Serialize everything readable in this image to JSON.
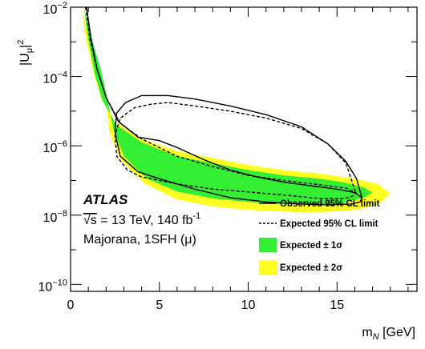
{
  "chart_data": {
    "type": "area",
    "title": "",
    "xlabel": "m_N [GeV]",
    "xlabel_main": "m",
    "xlabel_sub": "N",
    "xlabel_unit": " [GeV]",
    "ylabel_main": "|U",
    "ylabel_sub": "μ",
    "ylabel_bar": "|",
    "ylabel_sup": "2",
    "xlim": [
      0,
      19.5
    ],
    "ylim_log10": [
      -10.2,
      -2
    ],
    "y_scale": "log",
    "grid": false,
    "x_ticks": [
      {
        "value": 0,
        "label": "0"
      },
      {
        "value": 5,
        "label": "5"
      },
      {
        "value": 10,
        "label": "10"
      },
      {
        "value": 15,
        "label": "15"
      }
    ],
    "y_ticks": [
      {
        "exp": -2,
        "base": "10",
        "sup": "−2"
      },
      {
        "exp": -4,
        "base": "10",
        "sup": "−4"
      },
      {
        "exp": -6,
        "base": "10",
        "sup": "−6"
      },
      {
        "exp": -8,
        "base": "10",
        "sup": "−8"
      },
      {
        "exp": -10,
        "base": "10",
        "sup": "−10"
      }
    ],
    "annotations": {
      "experiment": "ATLAS",
      "energy_sqrt": "√s",
      "energy_rest": " = 13 TeV, 140 fb",
      "lumi_sup": "-1",
      "model": "Majorana, 1SFH (μ)"
    },
    "legend": {
      "placement": "bottom-right",
      "entries": {
        "observed": "Observed 95% CL limit",
        "expected": "Expected 95% CL limit",
        "one_sigma": "Expected ± 1σ",
        "two_sigma": "Expected ± 2σ"
      }
    },
    "colors": {
      "observed": "#000000",
      "expected": "#000000",
      "one_sigma": "#33ee33",
      "two_sigma": "#ffff22"
    },
    "series": {
      "two_sigma_band": {
        "name": "Expected ± 2σ",
        "x": [
          0.6,
          0.9,
          1.3,
          1.7,
          2.5,
          4,
          6,
          8,
          10,
          12,
          14,
          16,
          17.3,
          18,
          17.3,
          16,
          14,
          12,
          10,
          8,
          6,
          4.2,
          2.8,
          2.2,
          2,
          1.6,
          1.2,
          0.95,
          0.75,
          0.6
        ],
        "log10_y": [
          -2,
          -3,
          -3.9,
          -4.6,
          -5.3,
          -5.8,
          -6.15,
          -6.35,
          -6.55,
          -6.7,
          -6.8,
          -6.95,
          -7.1,
          -7.38,
          -7.7,
          -7.85,
          -7.92,
          -7.9,
          -7.85,
          -7.75,
          -7.55,
          -7.1,
          -6.4,
          -5.6,
          -4.8,
          -3.9,
          -3.2,
          -2.7,
          -2.3,
          -2
        ]
      },
      "one_sigma_band": {
        "name": "Expected ± 1σ",
        "x": [
          0.75,
          1,
          1.35,
          1.8,
          2.6,
          4,
          6,
          8,
          10,
          12,
          14,
          15.3,
          16.5,
          17,
          16.5,
          15.3,
          14,
          12,
          10,
          8,
          6,
          4.3,
          3,
          2.4,
          2.1,
          1.7,
          1.3,
          1.05,
          0.85,
          0.75
        ],
        "log10_y": [
          -2,
          -2.95,
          -3.9,
          -4.7,
          -5.4,
          -5.9,
          -6.3,
          -6.5,
          -6.7,
          -6.85,
          -6.95,
          -7.05,
          -7.2,
          -7.35,
          -7.5,
          -7.65,
          -7.7,
          -7.68,
          -7.62,
          -7.52,
          -7.32,
          -6.95,
          -6.3,
          -5.5,
          -4.7,
          -3.8,
          -3.1,
          -2.6,
          -2.2,
          -2
        ]
      },
      "expected": {
        "name": "Expected 95% CL limit",
        "x": [
          0.85,
          1.1,
          1.5,
          2,
          2.8,
          4,
          6,
          8,
          10,
          12,
          14,
          15.5,
          16.05,
          15.9,
          15.4,
          14,
          12,
          10,
          8,
          6,
          4,
          3.2,
          2.6,
          2.5,
          2.8,
          3.6,
          4.5,
          5.5,
          7,
          9,
          11,
          13,
          14.5,
          15.5,
          16.05
        ],
        "log10_y": [
          -2,
          -2.95,
          -3.8,
          -4.6,
          -5.35,
          -5.8,
          -6.3,
          -6.6,
          -6.85,
          -7.0,
          -7.12,
          -7.22,
          -7.35,
          -7.45,
          -7.52,
          -7.52,
          -7.42,
          -7.33,
          -7.25,
          -7.1,
          -6.9,
          -6.7,
          -6.3,
          -5.7,
          -5.2,
          -4.9,
          -4.8,
          -4.75,
          -4.85,
          -5.0,
          -5.2,
          -5.5,
          -5.95,
          -6.5,
          -7.35
        ]
      },
      "observed": {
        "name": "Observed 95% CL limit",
        "x": [
          0.9,
          1.15,
          1.5,
          2,
          2.7,
          3.8,
          5,
          6,
          7.5,
          9,
          10.5,
          12,
          13.5,
          15,
          16,
          16.4,
          16.3,
          15.8,
          14.5,
          13,
          11,
          9,
          7,
          5,
          3.8,
          2.8,
          2.5,
          2.6,
          3.1,
          4,
          5.5,
          7,
          9,
          11,
          13,
          14.5,
          15.5,
          16.1,
          16.4
        ],
        "log10_y": [
          -2,
          -2.9,
          -3.8,
          -4.6,
          -5.3,
          -5.75,
          -5.85,
          -6.05,
          -6.4,
          -6.7,
          -6.9,
          -7.05,
          -7.15,
          -7.25,
          -7.35,
          -7.5,
          -7.62,
          -7.68,
          -7.7,
          -7.68,
          -7.62,
          -7.5,
          -7.25,
          -6.95,
          -6.75,
          -6.3,
          -5.6,
          -5.05,
          -4.75,
          -4.55,
          -4.55,
          -4.65,
          -4.85,
          -5.1,
          -5.45,
          -5.95,
          -6.45,
          -6.95,
          -7.5
        ]
      }
    }
  }
}
